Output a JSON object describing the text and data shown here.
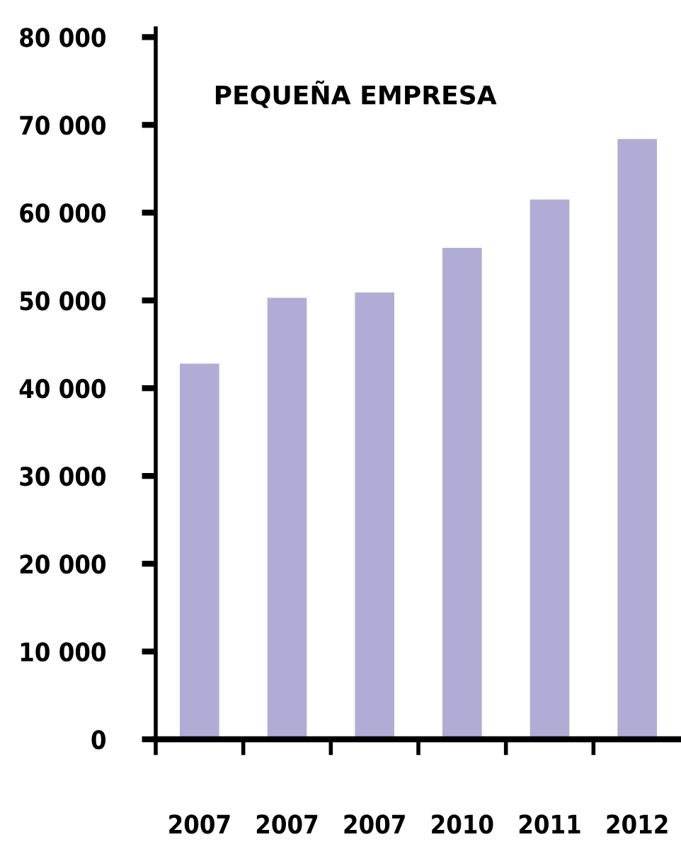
{
  "chart_data": {
    "type": "bar",
    "title": "PEQUEÑA EMPRESA",
    "categories": [
      "2007",
      "2007",
      "2007",
      "2010",
      "2011",
      "2012"
    ],
    "values": [
      42800,
      50300,
      50900,
      56000,
      61500,
      68400
    ],
    "color": "#b1acd6",
    "ylim": [
      0,
      81000
    ],
    "yticks": [
      {
        "value": 0,
        "label": "0"
      },
      {
        "value": 10000,
        "label": "10 000"
      },
      {
        "value": 20000,
        "label": "20 000"
      },
      {
        "value": 30000,
        "label": "30 000"
      },
      {
        "value": 40000,
        "label": "40 000"
      },
      {
        "value": 50000,
        "label": "50 000"
      },
      {
        "value": 60000,
        "label": "60 000"
      },
      {
        "value": 70000,
        "label": "70 000"
      },
      {
        "value": 80000,
        "label": "80 000"
      }
    ],
    "grid": false
  }
}
